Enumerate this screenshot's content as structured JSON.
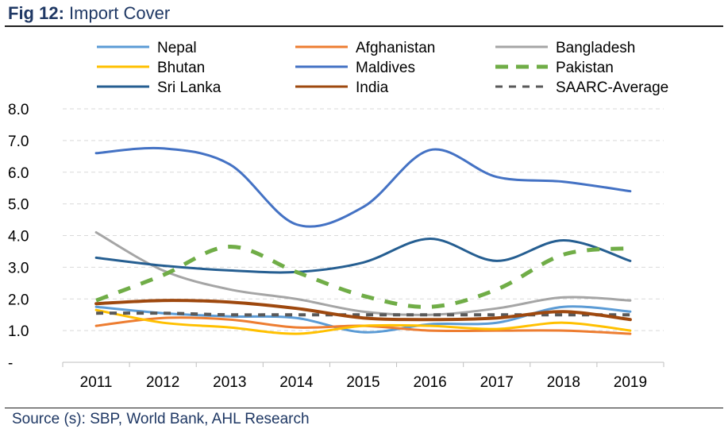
{
  "figure": {
    "label": "Fig 12:",
    "title": "Import Cover",
    "source": "Source (s): SBP, World Bank, AHL Research"
  },
  "chart_data": {
    "type": "line",
    "title": "Import Cover",
    "xlabel": "",
    "ylabel": "",
    "ylim": [
      0,
      8
    ],
    "yticks": [
      "-",
      "1.0",
      "2.0",
      "3.0",
      "4.0",
      "5.0",
      "6.0",
      "7.0",
      "8.0"
    ],
    "grid": true,
    "legend_position": "top",
    "categories": [
      "2011",
      "2012",
      "2013",
      "2014",
      "2015",
      "2016",
      "2017",
      "2018",
      "2019"
    ],
    "series": [
      {
        "name": "Nepal",
        "color": "#5b9bd5",
        "dash": false,
        "values": [
          1.75,
          1.55,
          1.45,
          1.4,
          0.95,
          1.2,
          1.25,
          1.75,
          1.6
        ]
      },
      {
        "name": "Afghanistan",
        "color": "#ed7d31",
        "dash": false,
        "values": [
          1.15,
          1.4,
          1.35,
          1.1,
          1.15,
          1.0,
          1.0,
          1.0,
          0.9
        ]
      },
      {
        "name": "Bangladesh",
        "color": "#a5a5a5",
        "dash": false,
        "values": [
          4.1,
          2.9,
          2.3,
          2.0,
          1.6,
          1.5,
          1.7,
          2.05,
          1.95
        ]
      },
      {
        "name": "Bhutan",
        "color": "#ffc000",
        "dash": false,
        "values": [
          1.65,
          1.25,
          1.1,
          0.9,
          1.15,
          1.15,
          1.05,
          1.25,
          1.0
        ]
      },
      {
        "name": "Maldives",
        "color": "#4472c4",
        "dash": false,
        "values": [
          6.6,
          6.75,
          6.25,
          4.35,
          4.9,
          6.7,
          5.85,
          5.7,
          5.4
        ]
      },
      {
        "name": "Pakistan",
        "color": "#70ad47",
        "dash": true,
        "values": [
          1.95,
          2.75,
          3.65,
          2.85,
          2.1,
          1.75,
          2.3,
          3.4,
          3.6
        ]
      },
      {
        "name": "Sri Lanka",
        "color": "#255e91",
        "dash": false,
        "values": [
          3.3,
          3.05,
          2.9,
          2.85,
          3.15,
          3.9,
          3.2,
          3.85,
          3.2
        ]
      },
      {
        "name": "India",
        "color": "#9e480e",
        "dash": false,
        "values": [
          1.85,
          1.95,
          1.9,
          1.7,
          1.4,
          1.35,
          1.4,
          1.6,
          1.35
        ]
      },
      {
        "name": "SAARC-Average",
        "color": "#595959",
        "dash": true,
        "values": [
          1.55,
          1.55,
          1.5,
          1.5,
          1.5,
          1.5,
          1.5,
          1.5,
          1.5
        ]
      }
    ]
  }
}
